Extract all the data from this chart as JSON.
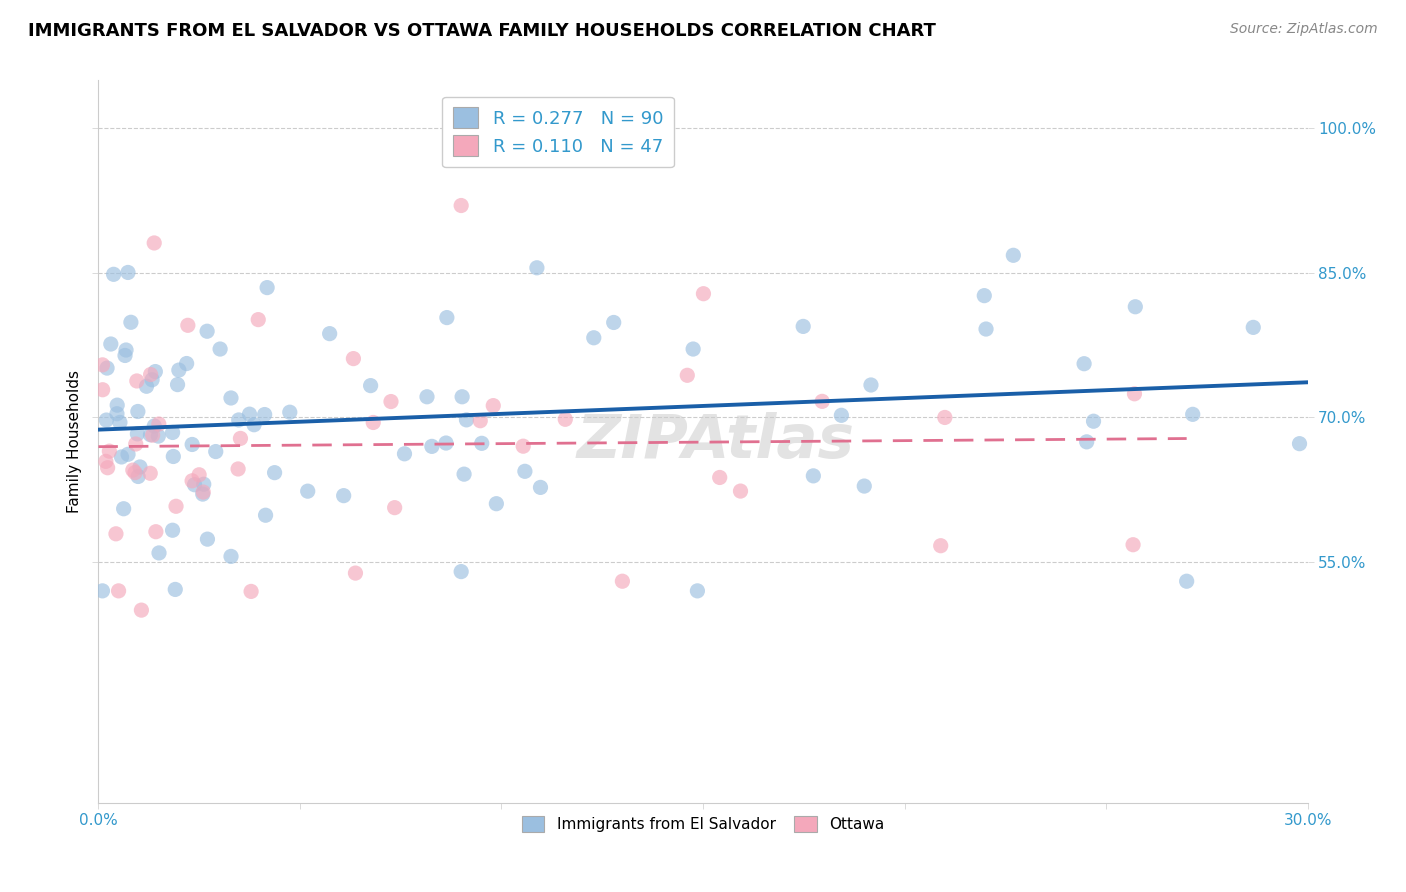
{
  "title": "IMMIGRANTS FROM EL SALVADOR VS OTTAWA FAMILY HOUSEHOLDS CORRELATION CHART",
  "source": "Source: ZipAtlas.com",
  "ylabel": "Family Households",
  "legend_label_blue": "Immigrants from El Salvador",
  "legend_label_pink": "Ottawa",
  "r_blue": "0.277",
  "n_blue": "90",
  "r_pink": "0.110",
  "n_pink": "47",
  "xlim_min": 0.0,
  "xlim_max": 30.0,
  "ylim_min": 30.0,
  "ylim_max": 105.0,
  "ytick_vals": [
    55.0,
    70.0,
    85.0,
    100.0
  ],
  "color_blue": "#9bbfe0",
  "color_pink": "#f4a8bb",
  "trendline_blue": "#1a5fa8",
  "trendline_pink": "#e07090",
  "bg_color": "#ffffff",
  "grid_color": "#cccccc",
  "tick_color": "#3399cc",
  "title_fontsize": 13,
  "label_fontsize": 11,
  "tick_fontsize": 11,
  "source_fontsize": 10,
  "scatter_size": 120,
  "scatter_alpha": 0.65
}
